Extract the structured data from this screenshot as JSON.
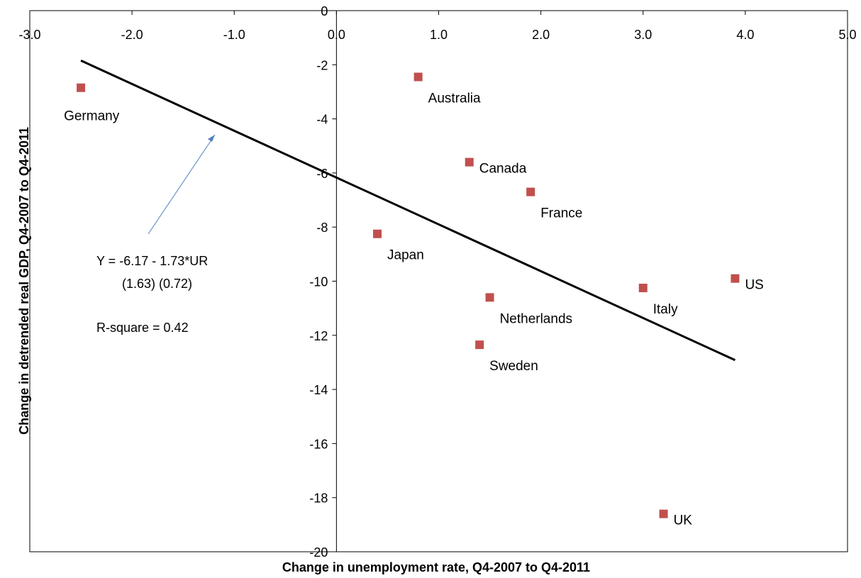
{
  "chart_data": {
    "type": "scatter",
    "title": "",
    "xlabel": "Change in unemployment rate, Q4-2007 to Q4-2011",
    "ylabel": "Change in detrended real GDP, Q4-2007 to Q4-2011",
    "xlim": [
      -3.0,
      5.0
    ],
    "ylim": [
      -20,
      0
    ],
    "x_ticks": [
      -3.0,
      -2.0,
      -1.0,
      0.0,
      1.0,
      2.0,
      3.0,
      4.0,
      5.0
    ],
    "x_tick_labels": [
      "-3.0",
      "-2.0",
      "-1.0",
      "0.0",
      "1.0",
      "2.0",
      "3.0",
      "4.0",
      "5.0"
    ],
    "y_ticks": [
      0,
      -2,
      -4,
      -6,
      -8,
      -10,
      -12,
      -14,
      -16,
      -18,
      -20
    ],
    "y_tick_labels": [
      "0",
      "-2",
      "-4",
      "-6",
      "-8",
      "-10",
      "-12",
      "-14",
      "-16",
      "-18",
      "-20"
    ],
    "grid": false,
    "legend": "none",
    "marker_color": "#c0504d",
    "points": [
      {
        "label": "Germany",
        "x": -2.5,
        "y": -2.85
      },
      {
        "label": "Australia",
        "x": 0.8,
        "y": -2.45
      },
      {
        "label": "Canada",
        "x": 1.3,
        "y": -5.6
      },
      {
        "label": "France",
        "x": 1.9,
        "y": -6.7
      },
      {
        "label": "Japan",
        "x": 0.4,
        "y": -8.25
      },
      {
        "label": "Netherlands",
        "x": 1.5,
        "y": -10.6
      },
      {
        "label": "Sweden",
        "x": 1.4,
        "y": -12.35
      },
      {
        "label": "Italy",
        "x": 3.0,
        "y": -10.25
      },
      {
        "label": "US",
        "x": 3.9,
        "y": -9.9
      },
      {
        "label": "UK",
        "x": 3.2,
        "y": -18.6
      }
    ],
    "fit_line": {
      "intercept": -6.17,
      "slope": -1.73,
      "x_range": [
        -2.5,
        3.9
      ],
      "color": "#000000"
    },
    "annotations": {
      "equation": "Y = -6.17 -  1.73*UR",
      "std_errors": "(1.63)  (0.72)",
      "r_square": "R-square = 0.42",
      "arrow_color": "#4f81bd"
    }
  }
}
